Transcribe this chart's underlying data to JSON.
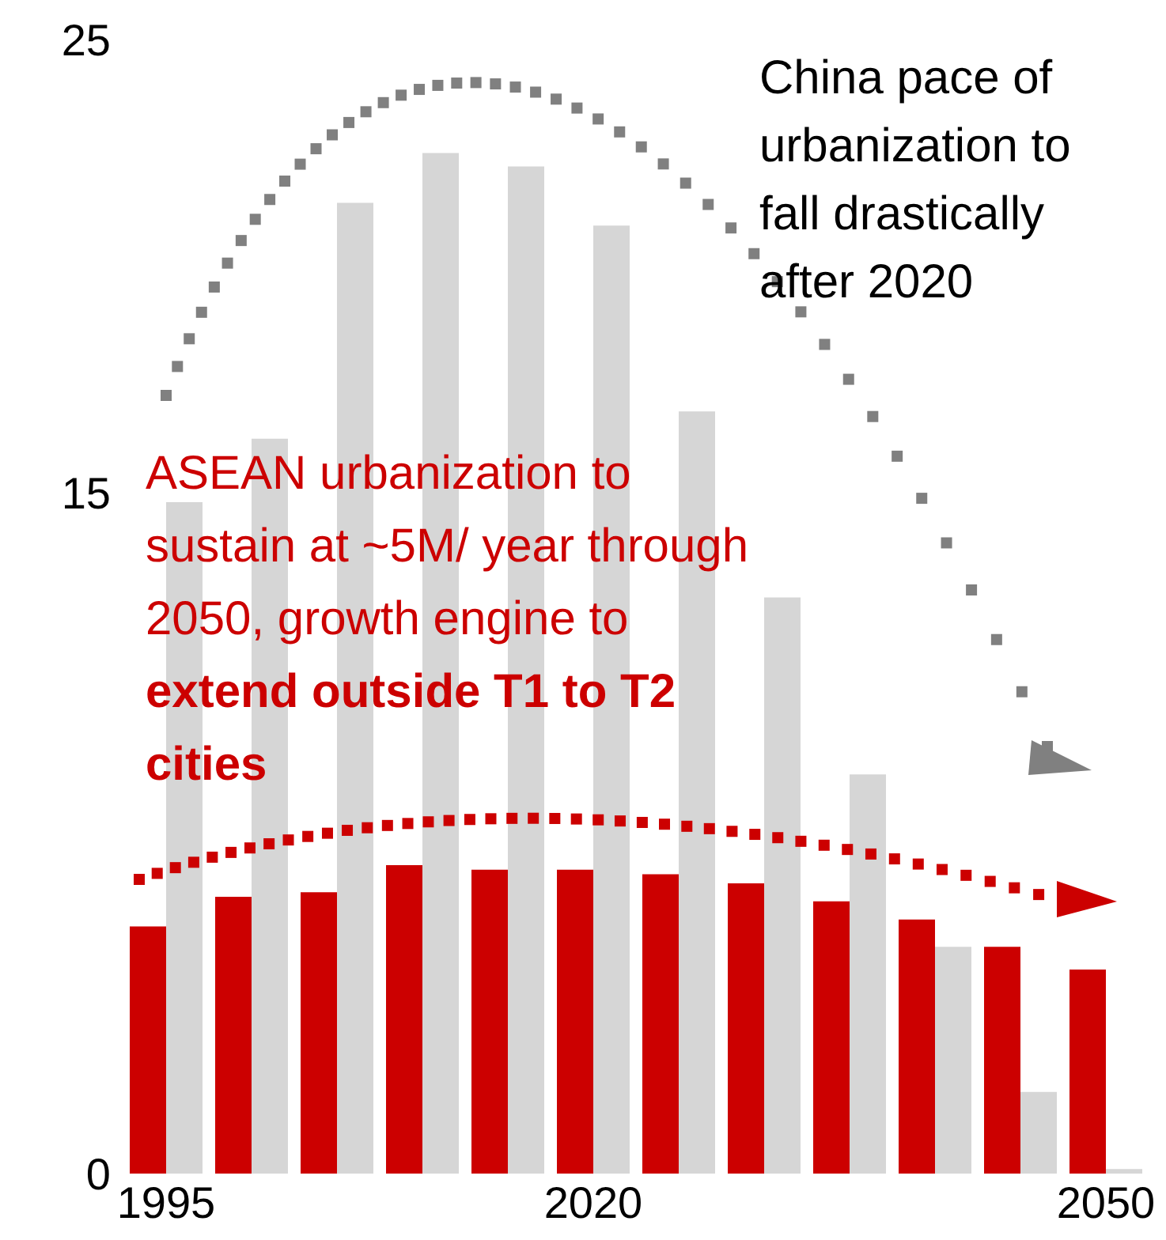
{
  "chart_data": {
    "type": "bar",
    "categories": [
      "1995",
      null,
      null,
      null,
      null,
      "2020",
      null,
      null,
      null,
      null,
      null,
      "2050"
    ],
    "series": [
      {
        "color": "#cc0000",
        "values": [
          5.45,
          6.1,
          6.2,
          6.8,
          6.7,
          6.7,
          6.6,
          6.4,
          6.0,
          5.6,
          5.0,
          4.5
        ]
      },
      {
        "color": "#d6d6d6",
        "values": [
          14.8,
          16.2,
          21.4,
          22.5,
          22.2,
          20.9,
          16.8,
          12.7,
          8.8,
          5.0,
          1.8,
          0.1
        ]
      }
    ],
    "ylim": [
      0,
      25
    ],
    "yticks": [
      0,
      15,
      25
    ],
    "grid": false,
    "legend": false,
    "annotations": [
      "China pace of urbanization to fall drastically after 2020",
      "ASEAN urbanization to sustain at ~5M/ year through 2050, growth engine to",
      "extend outside T1 to T2 cities"
    ]
  }
}
